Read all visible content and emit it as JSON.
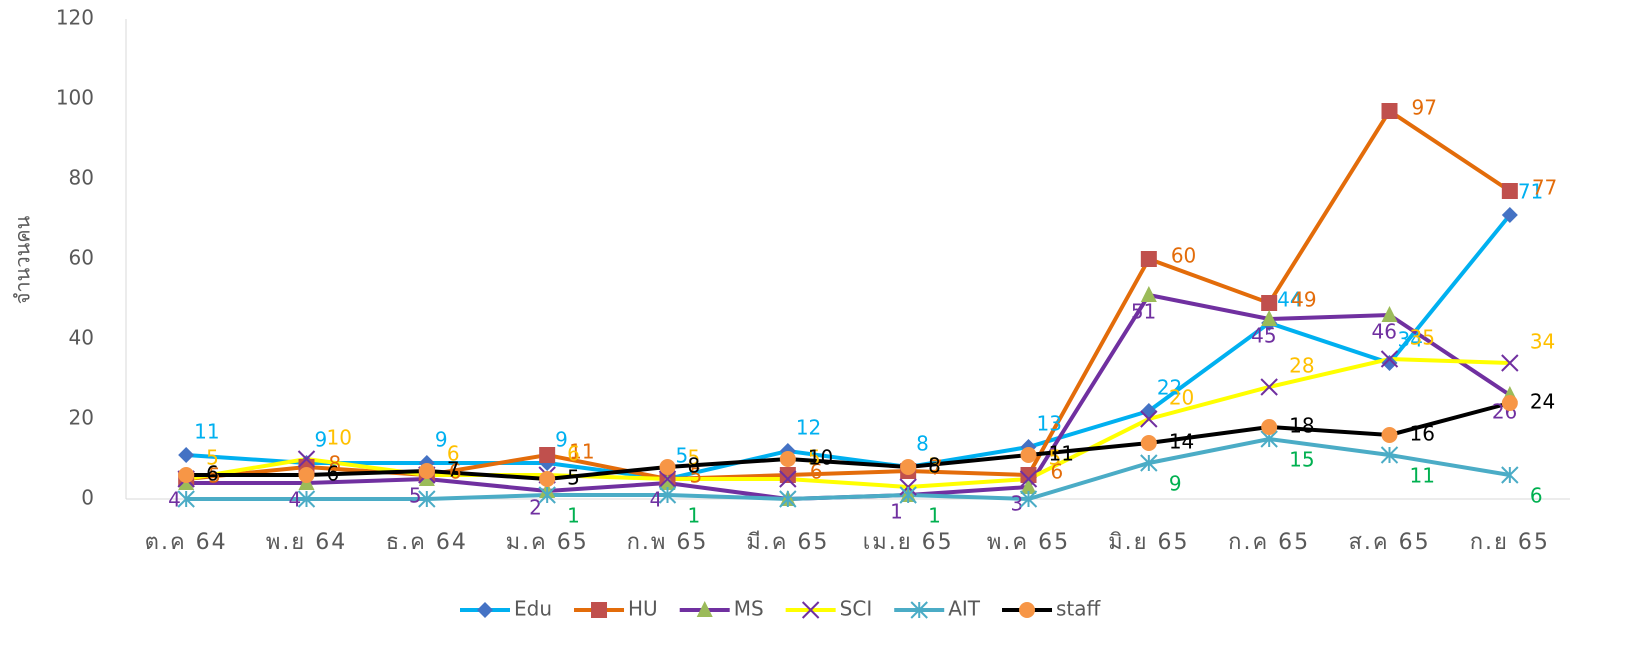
{
  "chart_data": {
    "type": "line",
    "y_label": "จำนวนคน",
    "categories": [
      "ต.ค 64",
      "พ.ย 64",
      "ธ.ค 64",
      "ม.ค 65",
      "ก.พ 65",
      "มี.ค 65",
      "เม.ย 65",
      "พ.ค 65",
      "มิ.ย 65",
      "ก.ค 65",
      "ส.ค 65",
      "ก.ย 65"
    ],
    "ylim": [
      0,
      120
    ],
    "yticks": [
      0,
      20,
      40,
      60,
      80,
      100,
      120
    ],
    "legend": "bottom",
    "series": [
      {
        "name": "Edu",
        "color": "#00b0f0",
        "marker": "diamond",
        "marker_color": "#4472c4",
        "label_color": "#00b0f0",
        "values": [
          11,
          9,
          9,
          9,
          5,
          12,
          8,
          13,
          22,
          44,
          34,
          71
        ]
      },
      {
        "name": "HU",
        "color": "#e36c0a",
        "marker": "square",
        "marker_color": "#c0504d",
        "label_color": "#e36c0a",
        "values": [
          5,
          8,
          6,
          11,
          5,
          6,
          7,
          6,
          60,
          49,
          97,
          77
        ]
      },
      {
        "name": "MS",
        "color": "#7030a0",
        "marker": "triangle",
        "marker_color": "#9bbb59",
        "label_color": "#7030a0",
        "values": [
          4,
          4,
          5,
          2,
          4,
          0,
          1,
          3,
          51,
          45,
          46,
          26
        ],
        "value_labels": [
          "4",
          "4",
          "5",
          "2",
          "4",
          null,
          "1",
          "3",
          "51",
          "45",
          "46",
          "26"
        ]
      },
      {
        "name": "SCI",
        "color": "#ffff00",
        "marker": "x",
        "marker_color": "#7030a0",
        "label_color": "#ffc000",
        "values": [
          5,
          10,
          6,
          6,
          5,
          5,
          3,
          5,
          20,
          28,
          35,
          34
        ]
      },
      {
        "name": "AIT",
        "color": "#4bacc6",
        "marker": "star",
        "marker_color": "#4bacc6",
        "label_color": "#00b050",
        "values": [
          0,
          0,
          0,
          1,
          1,
          0,
          1,
          0,
          9,
          15,
          11,
          6
        ],
        "value_labels": [
          null,
          null,
          null,
          "1",
          "1",
          null,
          "1",
          null,
          "9",
          "15",
          "11",
          "6"
        ]
      },
      {
        "name": "staff",
        "color": "#000000",
        "marker": "circle",
        "marker_color": "#f79646",
        "label_color": "#000000",
        "values": [
          6,
          6,
          7,
          5,
          8,
          10,
          8,
          11,
          14,
          18,
          16,
          24
        ]
      }
    ]
  }
}
